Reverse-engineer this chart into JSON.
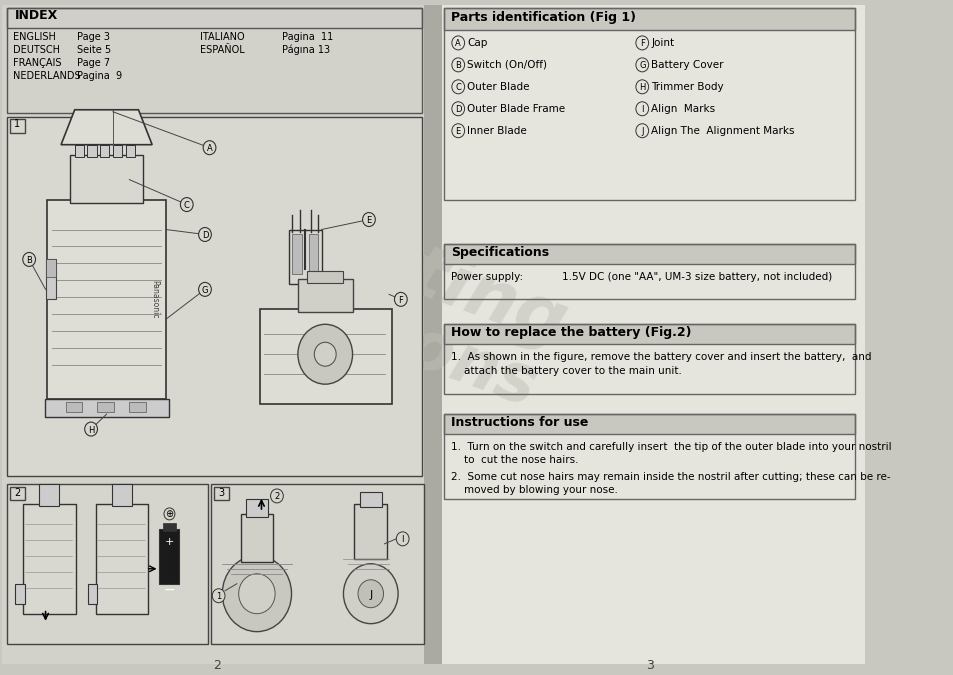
{
  "page_bg": "#c8c7c0",
  "left_bg": "#d2d1ca",
  "right_bg": "#e5e4dd",
  "index_header_bg": "#d0cfca",
  "section_header_bg": "#c8c8c0",
  "fig_box_bg": "#d8d7d0",
  "index_title": "INDEX",
  "index_entries_left": [
    [
      "ENGLISH",
      "Page 3"
    ],
    [
      "DEUTSCH",
      "Seite 5"
    ],
    [
      "FRANÇAIS",
      "Page 7"
    ],
    [
      "NEDERLANDS",
      "Pagina  9"
    ]
  ],
  "index_entries_right": [
    [
      "ITALIANO",
      "Pagina  11"
    ],
    [
      "ESPAÑOL",
      "Págına 13"
    ]
  ],
  "parts_title": "Parts identification (Fig 1)",
  "parts_left": [
    [
      "A",
      "Cap"
    ],
    [
      "B",
      "Switch (On/Off)"
    ],
    [
      "C",
      "Outer Blade"
    ],
    [
      "D",
      "Outer Blade Frame"
    ],
    [
      "E",
      "Inner Blade"
    ]
  ],
  "parts_right": [
    [
      "F",
      "Joint"
    ],
    [
      "G",
      "Battery Cover"
    ],
    [
      "H",
      "Trimmer Body"
    ],
    [
      "I",
      "Align  Marks"
    ],
    [
      "J",
      "Align The  Alignment Marks"
    ]
  ],
  "specs_title": "Specifications",
  "specs_power_label": "Power supply:",
  "specs_power_value": "1.5V DC (one \"AA\", UM-3 size battery, not included)",
  "battery_title": "How to replace the battery (Fig.2)",
  "battery_line1": "1.  As shown in the figure, remove the battery cover and insert the battery,  and",
  "battery_line2": "    attach the battery cover to the main unit.",
  "instructions_title": "Instructions for use",
  "inst_line1": "1.  Turn on the switch and carefully insert  the tip of the outer blade into your nostril",
  "inst_line2": "    to  cut the nose hairs.",
  "inst_line3": "2.  Some cut nose hairs may remain inside the nostril after cutting; these can be re-",
  "inst_line4": "    moved by blowing your nose.",
  "page_left": "2",
  "page_right": "3"
}
